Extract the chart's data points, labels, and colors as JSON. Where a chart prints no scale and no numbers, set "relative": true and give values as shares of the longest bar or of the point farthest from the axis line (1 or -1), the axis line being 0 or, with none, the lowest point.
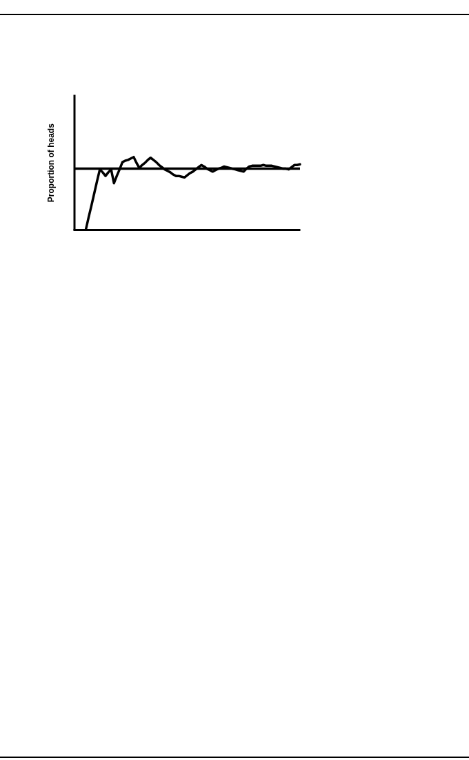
{
  "chart_data": {
    "type": "line",
    "ylabel": "Proportion of heads",
    "relative": true,
    "categories": [
      null,
      null,
      null,
      null,
      null,
      null,
      null,
      null,
      null,
      null,
      null,
      null,
      null,
      null,
      null,
      null,
      null,
      null,
      null,
      null,
      null,
      null,
      null,
      null,
      null,
      null,
      null,
      null,
      null,
      null,
      null,
      null,
      null,
      null,
      null,
      null,
      null,
      null,
      null,
      null,
      null,
      null,
      null,
      null,
      null,
      null,
      null,
      null,
      null,
      null,
      null,
      null,
      null,
      null,
      null,
      null,
      null,
      null,
      null,
      null,
      null,
      null,
      null,
      null,
      null,
      null,
      null,
      null,
      null,
      null,
      null,
      null,
      null,
      null,
      null,
      null,
      null,
      null,
      null,
      null,
      null
    ],
    "series": [
      {
        "color": "#000000",
        "values": [
          null,
          null,
          null,
          null,
          0,
          0.17,
          0.33,
          0.5,
          0.67,
          0.83,
          0.79,
          0.74,
          0.79,
          0.83,
          0.64,
          0.74,
          0.83,
          0.93,
          0.95,
          0.96,
          0.98,
          1,
          0.92,
          0.85,
          0.89,
          0.92,
          0.96,
          0.99,
          0.96,
          0.93,
          0.89,
          0.86,
          0.83,
          0.81,
          0.79,
          0.76,
          0.74,
          0.74,
          0.73,
          0.72,
          0.75,
          0.78,
          0.8,
          0.83,
          0.86,
          0.89,
          0.87,
          0.84,
          0.82,
          0.8,
          0.82,
          0.84,
          0.85,
          0.87,
          0.86,
          0.85,
          0.84,
          0.83,
          0.82,
          0.81,
          0.8,
          0.84,
          0.87,
          0.88,
          0.88,
          0.88,
          0.88,
          0.89,
          0.88,
          0.88,
          0.88,
          0.87,
          0.86,
          0.85,
          0.84,
          0.84,
          0.83,
          0.86,
          0.89,
          0.89,
          0.9
        ]
      }
    ],
    "ref_lines": [
      {
        "axis": "y",
        "value": 0.84,
        "color": "#000000"
      }
    ],
    "grid": false,
    "legend": false,
    "marker": "none",
    "line_style": "solid",
    "tick_labels": false
  }
}
